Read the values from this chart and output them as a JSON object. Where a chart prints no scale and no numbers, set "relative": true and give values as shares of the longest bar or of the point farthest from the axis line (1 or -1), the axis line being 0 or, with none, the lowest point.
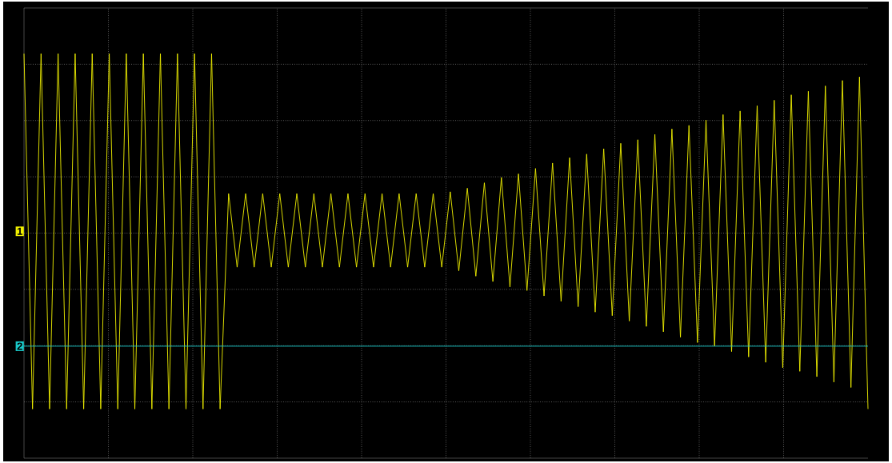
{
  "chart_data": {
    "type": "line",
    "relative": true,
    "grid": true,
    "marker": "none",
    "line_style": "solid",
    "categories": [
      null,
      null,
      null,
      null,
      null,
      null,
      null,
      null,
      null,
      null,
      null,
      null,
      null,
      null,
      null,
      null,
      null,
      null,
      null,
      null,
      null,
      null,
      null,
      null,
      null,
      null,
      null,
      null,
      null,
      null,
      null,
      null,
      null,
      null,
      null,
      null,
      null,
      null,
      null,
      null,
      null,
      null,
      null,
      null,
      null,
      null,
      null,
      null,
      null,
      null,
      null,
      null,
      null,
      null,
      null,
      null,
      null,
      null,
      null,
      null,
      null,
      null,
      null,
      null,
      null,
      null,
      null,
      null,
      null,
      null,
      null,
      null,
      null,
      null,
      null,
      null,
      null,
      null,
      null,
      null,
      null,
      null,
      null,
      null,
      null,
      null,
      null,
      null,
      null,
      null,
      null,
      null,
      null,
      null,
      null,
      null,
      null,
      null,
      null,
      null
    ],
    "series": [
      {
        "name": "1",
        "color": "#f0f000",
        "values": [
          1.0,
          -0.98,
          1.0,
          -0.98,
          1.0,
          -0.98,
          1.0,
          -0.98,
          1.0,
          -0.98,
          1.0,
          -0.98,
          1.0,
          -0.98,
          1.0,
          -0.98,
          1.0,
          -0.98,
          1.0,
          -0.98,
          1.0,
          -0.98,
          1.0,
          -0.98,
          0.22,
          -0.19,
          0.22,
          -0.19,
          0.22,
          -0.19,
          0.22,
          -0.19,
          0.22,
          -0.19,
          0.22,
          -0.19,
          0.22,
          -0.19,
          0.22,
          -0.19,
          0.22,
          -0.19,
          0.22,
          -0.19,
          0.22,
          -0.19,
          0.22,
          -0.19,
          0.22,
          -0.19,
          0.23,
          -0.21,
          0.25,
          -0.24,
          0.28,
          -0.27,
          0.31,
          -0.3,
          0.33,
          -0.32,
          0.36,
          -0.35,
          0.39,
          -0.38,
          0.42,
          -0.41,
          0.44,
          -0.44,
          0.47,
          -0.46,
          0.5,
          -0.49,
          0.52,
          -0.52,
          0.55,
          -0.55,
          0.58,
          -0.58,
          0.6,
          -0.61,
          0.63,
          -0.63,
          0.66,
          -0.66,
          0.68,
          -0.69,
          0.71,
          -0.72,
          0.74,
          -0.75,
          0.77,
          -0.77,
          0.79,
          -0.8,
          0.82,
          -0.83,
          0.85,
          -0.86,
          0.87,
          -0.98
        ]
      },
      {
        "name": "2",
        "color": "#19c8c8",
        "values": [
          -0.63,
          -0.63,
          -0.63,
          -0.63,
          -0.63,
          -0.63,
          -0.63,
          -0.63,
          -0.63,
          -0.63,
          -0.63,
          -0.63,
          -0.63,
          -0.63,
          -0.63,
          -0.63,
          -0.63,
          -0.63,
          -0.63,
          -0.63,
          -0.63,
          -0.63,
          -0.63,
          -0.63,
          -0.63,
          -0.63,
          -0.63,
          -0.63,
          -0.63,
          -0.63,
          -0.63,
          -0.63,
          -0.63,
          -0.63,
          -0.63,
          -0.63,
          -0.63,
          -0.63,
          -0.63,
          -0.63,
          -0.63,
          -0.63,
          -0.63,
          -0.63,
          -0.63,
          -0.63,
          -0.63,
          -0.63,
          -0.63,
          -0.63,
          -0.63,
          -0.63,
          -0.63,
          -0.63,
          -0.63,
          -0.63,
          -0.63,
          -0.63,
          -0.63,
          -0.63,
          -0.63,
          -0.63,
          -0.63,
          -0.63,
          -0.63,
          -0.63,
          -0.63,
          -0.63,
          -0.63,
          -0.63,
          -0.63,
          -0.63,
          -0.63,
          -0.63,
          -0.63,
          -0.63,
          -0.63,
          -0.63,
          -0.63,
          -0.63,
          -0.63,
          -0.63,
          -0.63,
          -0.63,
          -0.63,
          -0.63,
          -0.63,
          -0.63,
          -0.63,
          -0.63,
          -0.63,
          -0.63,
          -0.63,
          -0.63,
          -0.63,
          -0.63,
          -0.63,
          -0.63,
          -0.63,
          -0.63
        ]
      }
    ]
  }
}
